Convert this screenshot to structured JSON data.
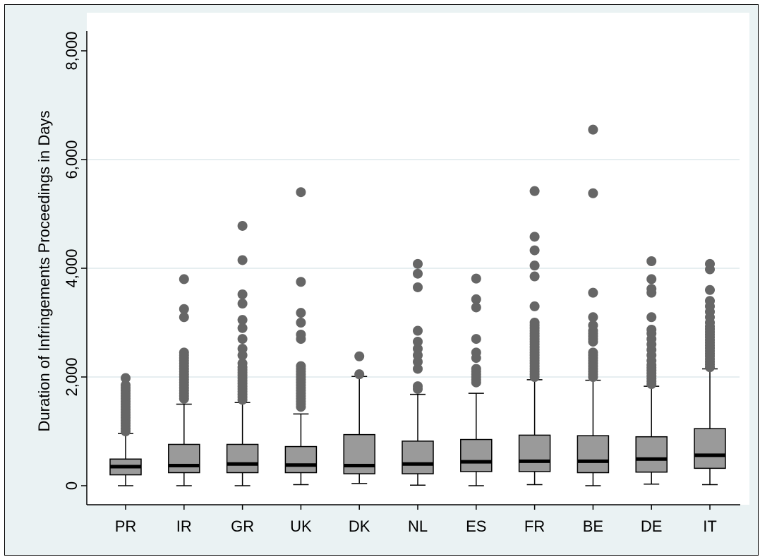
{
  "chart_data": {
    "type": "boxplot",
    "ylabel": "Duration of Infringements Proceedings in Days",
    "xlabel": "",
    "ylim": [
      0,
      8000
    ],
    "yticks": [
      0,
      2000,
      4000,
      6000,
      8000
    ],
    "ytick_labels": [
      "0",
      "2,000",
      "4,000",
      "6,000",
      "8,000"
    ],
    "grid": "horizontal",
    "colors": {
      "box_fill": "#9a9a9a",
      "outlier": "#666666",
      "median": "#000000",
      "plot_bg": "#ffffff",
      "frame_bg": "#eaf2f3",
      "grid": "#e6eef0"
    },
    "categories": [
      "PR",
      "IR",
      "GR",
      "UK",
      "DK",
      "NL",
      "ES",
      "FR",
      "BE",
      "DE",
      "IT"
    ],
    "boxes": [
      {
        "name": "PR",
        "whisker_low": 0,
        "q1": 200,
        "median": 350,
        "q3": 490,
        "whisker_high": 960,
        "outliers": [
          1000,
          1050,
          1100,
          1150,
          1200,
          1250,
          1300,
          1350,
          1400,
          1450,
          1500,
          1550,
          1600,
          1650,
          1700,
          1750,
          1800,
          1850,
          1980
        ]
      },
      {
        "name": "IR",
        "whisker_low": 0,
        "q1": 240,
        "median": 370,
        "q3": 760,
        "whisker_high": 1500,
        "outliers": [
          1600,
          1650,
          1700,
          1750,
          1800,
          1850,
          1900,
          1950,
          2000,
          2050,
          2100,
          2150,
          2200,
          2250,
          2300,
          2350,
          2400,
          2450,
          3100,
          3250,
          3800
        ]
      },
      {
        "name": "GR",
        "whisker_low": 0,
        "q1": 240,
        "median": 400,
        "q3": 760,
        "whisker_high": 1530,
        "outliers": [
          1580,
          1630,
          1680,
          1730,
          1780,
          1830,
          1880,
          1930,
          1980,
          2030,
          2080,
          2130,
          2180,
          2250,
          2400,
          2520,
          2700,
          2900,
          3050,
          3350,
          3520,
          4150,
          4780
        ]
      },
      {
        "name": "UK",
        "whisker_low": 20,
        "q1": 240,
        "median": 380,
        "q3": 720,
        "whisker_high": 1320,
        "outliers": [
          1450,
          1500,
          1550,
          1600,
          1650,
          1700,
          1750,
          1800,
          1850,
          1900,
          1950,
          2000,
          2050,
          2100,
          2150,
          2200,
          2700,
          2780,
          3000,
          3180,
          3750,
          5400
        ]
      },
      {
        "name": "DK",
        "whisker_low": 40,
        "q1": 220,
        "median": 370,
        "q3": 940,
        "whisker_high": 2010,
        "outliers": [
          2050,
          2380
        ]
      },
      {
        "name": "NL",
        "whisker_low": 10,
        "q1": 220,
        "median": 400,
        "q3": 820,
        "whisker_high": 1680,
        "outliers": [
          1780,
          1830,
          2150,
          2280,
          2400,
          2520,
          2650,
          2850,
          3650,
          3900,
          4080
        ]
      },
      {
        "name": "ES",
        "whisker_low": 0,
        "q1": 260,
        "median": 440,
        "q3": 850,
        "whisker_high": 1700,
        "outliers": [
          1900,
          1950,
          2000,
          2050,
          2100,
          2150,
          2350,
          2450,
          2700,
          3280,
          3430,
          3810
        ]
      },
      {
        "name": "FR",
        "whisker_low": 20,
        "q1": 260,
        "median": 450,
        "q3": 930,
        "whisker_high": 1950,
        "outliers": [
          2000,
          2050,
          2100,
          2150,
          2200,
          2250,
          2300,
          2350,
          2400,
          2450,
          2500,
          2550,
          2600,
          2650,
          2700,
          2750,
          2800,
          2850,
          2900,
          2950,
          3000,
          3300,
          3850,
          4050,
          4330,
          4580,
          5420
        ]
      },
      {
        "name": "BE",
        "whisker_low": 0,
        "q1": 240,
        "median": 450,
        "q3": 920,
        "whisker_high": 1940,
        "outliers": [
          2000,
          2050,
          2100,
          2150,
          2200,
          2250,
          2300,
          2350,
          2400,
          2450,
          2650,
          2700,
          2750,
          2800,
          2850,
          2950,
          3100,
          3550,
          5380,
          6550
        ]
      },
      {
        "name": "DE",
        "whisker_low": 30,
        "q1": 250,
        "median": 490,
        "q3": 900,
        "whisker_high": 1830,
        "outliers": [
          1870,
          1920,
          1970,
          2020,
          2070,
          2120,
          2170,
          2220,
          2300,
          2400,
          2500,
          2600,
          2700,
          2800,
          2870,
          3100,
          3550,
          3620,
          3800,
          4130
        ]
      },
      {
        "name": "IT",
        "whisker_low": 20,
        "q1": 320,
        "median": 560,
        "q3": 1050,
        "whisker_high": 2150,
        "outliers": [
          2180,
          2230,
          2280,
          2330,
          2380,
          2430,
          2480,
          2530,
          2580,
          2630,
          2680,
          2730,
          2780,
          2830,
          2880,
          2930,
          3000,
          3100,
          3200,
          3300,
          3400,
          3600,
          3980,
          4080
        ]
      }
    ]
  }
}
